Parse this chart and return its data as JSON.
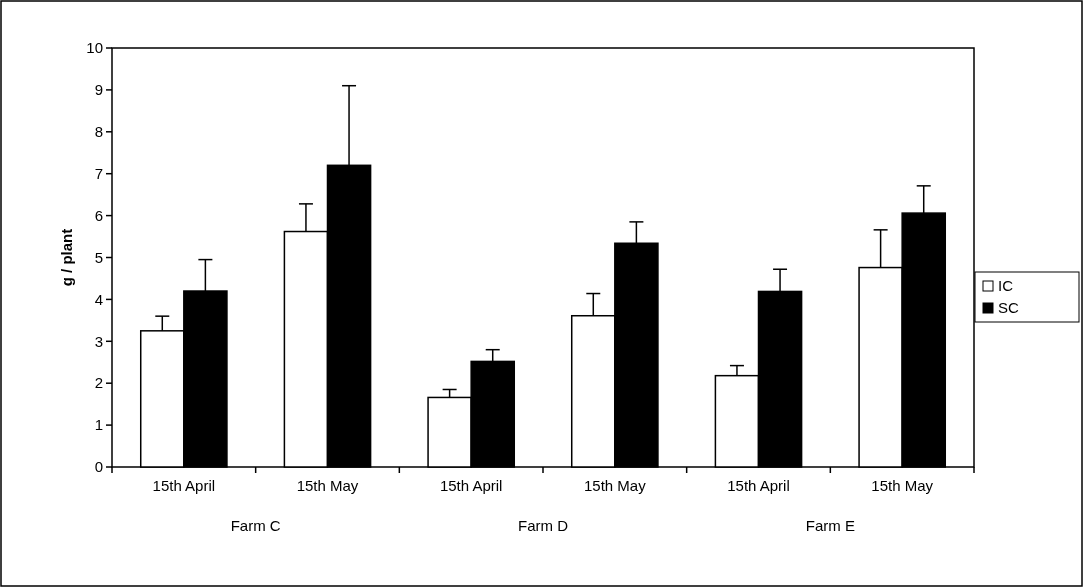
{
  "chart_data": {
    "type": "bar",
    "ylabel": "g / plant",
    "categories": [
      "15th April",
      "15th May",
      "15th April",
      "15th May",
      "15th April",
      "15th May"
    ],
    "series": [
      {
        "name": "IC",
        "color": "#ffffff",
        "values": [
          3.25,
          5.62,
          1.66,
          3.61,
          2.18,
          4.76
        ],
        "errors": [
          0.35,
          0.66,
          0.19,
          0.53,
          0.24,
          0.9
        ]
      },
      {
        "name": "SC",
        "color": "#000000",
        "values": [
          4.2,
          7.2,
          2.52,
          5.34,
          4.19,
          6.06
        ],
        "errors": [
          0.75,
          1.9,
          0.28,
          0.51,
          0.53,
          0.65
        ]
      }
    ],
    "annotations": [
      "Farm C",
      "Farm D",
      "Farm E"
    ],
    "ylim": [
      0,
      10
    ],
    "yticks": [
      0,
      1,
      2,
      3,
      4,
      5,
      6,
      7,
      8,
      9,
      10
    ],
    "grid": false,
    "legend": "right"
  }
}
